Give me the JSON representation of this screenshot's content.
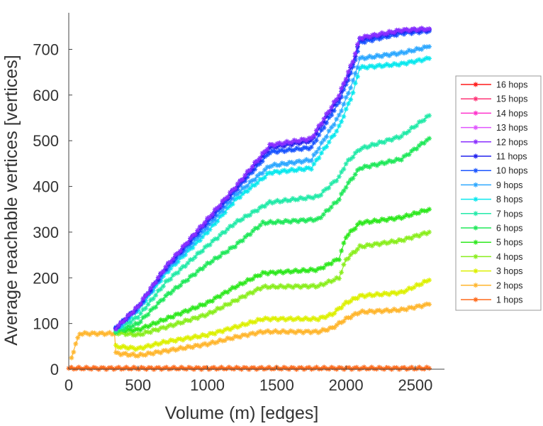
{
  "chart_data": {
    "type": "line",
    "title": "",
    "xlabel": "Volume (m) [edges]",
    "ylabel": "Average reachable vertices [vertices]",
    "xlim": [
      0,
      2710
    ],
    "ylim": [
      0,
      780
    ],
    "xticks": [
      0,
      500,
      1000,
      1500,
      2000,
      2500
    ],
    "yticks": [
      0,
      100,
      200,
      300,
      400,
      500,
      600,
      700
    ],
    "grid": false,
    "legend_position": "right",
    "series": [
      {
        "name": "1 hops",
        "color": "#ff6a1a",
        "points": [
          [
            0,
            2
          ],
          [
            2600,
            2
          ]
        ]
      },
      {
        "name": "2 hops",
        "color": "#ffb62e",
        "points": [
          [
            20,
            25
          ],
          [
            50,
            55
          ],
          [
            80,
            78
          ],
          [
            330,
            78
          ],
          [
            340,
            35
          ],
          [
            500,
            30
          ],
          [
            700,
            40
          ],
          [
            1000,
            55
          ],
          [
            1200,
            70
          ],
          [
            1400,
            82
          ],
          [
            1800,
            82
          ],
          [
            1900,
            90
          ],
          [
            2000,
            110
          ],
          [
            2100,
            125
          ],
          [
            2400,
            130
          ],
          [
            2600,
            142
          ]
        ]
      },
      {
        "name": "3 hops",
        "color": "#ddf000",
        "points": [
          [
            340,
            50
          ],
          [
            500,
            45
          ],
          [
            700,
            60
          ],
          [
            1000,
            75
          ],
          [
            1200,
            92
          ],
          [
            1400,
            110
          ],
          [
            1800,
            110
          ],
          [
            1900,
            120
          ],
          [
            2000,
            145
          ],
          [
            2100,
            160
          ],
          [
            2400,
            168
          ],
          [
            2600,
            195
          ]
        ]
      },
      {
        "name": "4 hops",
        "color": "#8aee1e",
        "points": [
          [
            340,
            80
          ],
          [
            500,
            75
          ],
          [
            700,
            92
          ],
          [
            1000,
            120
          ],
          [
            1200,
            150
          ],
          [
            1400,
            180
          ],
          [
            1800,
            182
          ],
          [
            1950,
            200
          ],
          [
            2000,
            240
          ],
          [
            2100,
            268
          ],
          [
            2400,
            282
          ],
          [
            2600,
            300
          ]
        ]
      },
      {
        "name": "5 hops",
        "color": "#2ee81e",
        "points": [
          [
            340,
            85
          ],
          [
            500,
            86
          ],
          [
            700,
            110
          ],
          [
            1000,
            145
          ],
          [
            1200,
            180
          ],
          [
            1400,
            210
          ],
          [
            1800,
            218
          ],
          [
            1950,
            242
          ],
          [
            2000,
            290
          ],
          [
            2100,
            320
          ],
          [
            2400,
            332
          ],
          [
            2600,
            350
          ]
        ]
      },
      {
        "name": "6 hops",
        "color": "#20e85a",
        "points": [
          [
            340,
            82
          ],
          [
            500,
            100
          ],
          [
            700,
            160
          ],
          [
            1000,
            230
          ],
          [
            1200,
            270
          ],
          [
            1400,
            320
          ],
          [
            1800,
            328
          ],
          [
            1950,
            372
          ],
          [
            2000,
            400
          ],
          [
            2100,
            440
          ],
          [
            2400,
            460
          ],
          [
            2600,
            505
          ]
        ]
      },
      {
        "name": "7 hops",
        "color": "#22eaa8",
        "points": [
          [
            340,
            85
          ],
          [
            500,
            115
          ],
          [
            700,
            190
          ],
          [
            1000,
            270
          ],
          [
            1200,
            320
          ],
          [
            1450,
            365
          ],
          [
            1800,
            378
          ],
          [
            1950,
            420
          ],
          [
            2000,
            450
          ],
          [
            2100,
            482
          ],
          [
            2400,
            510
          ],
          [
            2600,
            555
          ]
        ]
      },
      {
        "name": "8 hops",
        "color": "#0ae8ee",
        "points": [
          [
            340,
            86
          ],
          [
            500,
            130
          ],
          [
            700,
            210
          ],
          [
            1000,
            300
          ],
          [
            1200,
            370
          ],
          [
            1450,
            430
          ],
          [
            1750,
            440
          ],
          [
            1950,
            530
          ],
          [
            2050,
            605
          ],
          [
            2100,
            660
          ],
          [
            2400,
            668
          ],
          [
            2600,
            680
          ]
        ]
      },
      {
        "name": "9 hops",
        "color": "#2ea8ff",
        "points": [
          [
            340,
            88
          ],
          [
            500,
            133
          ],
          [
            700,
            215
          ],
          [
            1000,
            310
          ],
          [
            1200,
            380
          ],
          [
            1450,
            445
          ],
          [
            1750,
            458
          ],
          [
            1950,
            555
          ],
          [
            2050,
            630
          ],
          [
            2100,
            680
          ],
          [
            2400,
            692
          ],
          [
            2600,
            706
          ]
        ]
      },
      {
        "name": "10 hops",
        "color": "#1a55ff",
        "points": [
          [
            340,
            90
          ],
          [
            500,
            135
          ],
          [
            700,
            220
          ],
          [
            1000,
            320
          ],
          [
            1200,
            390
          ],
          [
            1450,
            475
          ],
          [
            1750,
            485
          ],
          [
            1950,
            585
          ],
          [
            2050,
            660
          ],
          [
            2100,
            715
          ],
          [
            2400,
            735
          ],
          [
            2600,
            740
          ]
        ]
      },
      {
        "name": "11 hops",
        "color": "#2222ee",
        "points": [
          [
            340,
            90
          ],
          [
            500,
            136
          ],
          [
            700,
            222
          ],
          [
            1000,
            325
          ],
          [
            1200,
            395
          ],
          [
            1450,
            485
          ],
          [
            1750,
            500
          ],
          [
            1950,
            595
          ],
          [
            2050,
            670
          ],
          [
            2100,
            722
          ],
          [
            2400,
            740
          ],
          [
            2600,
            743
          ]
        ]
      },
      {
        "name": "12 hops",
        "color": "#8a2eff",
        "points": [
          [
            340,
            90
          ],
          [
            500,
            137
          ],
          [
            700,
            224
          ],
          [
            1000,
            328
          ],
          [
            1200,
            398
          ],
          [
            1450,
            490
          ],
          [
            1750,
            505
          ],
          [
            1950,
            600
          ],
          [
            2050,
            675
          ],
          [
            2100,
            725
          ],
          [
            2400,
            742
          ],
          [
            2600,
            745
          ]
        ]
      },
      {
        "name": "13 hops",
        "color": "#e055ff",
        "points": []
      },
      {
        "name": "14 hops",
        "color": "#ff33cc",
        "points": []
      },
      {
        "name": "15 hops",
        "color": "#ff3377",
        "points": []
      },
      {
        "name": "16 hops",
        "color": "#ff1a1a",
        "points": []
      }
    ]
  }
}
